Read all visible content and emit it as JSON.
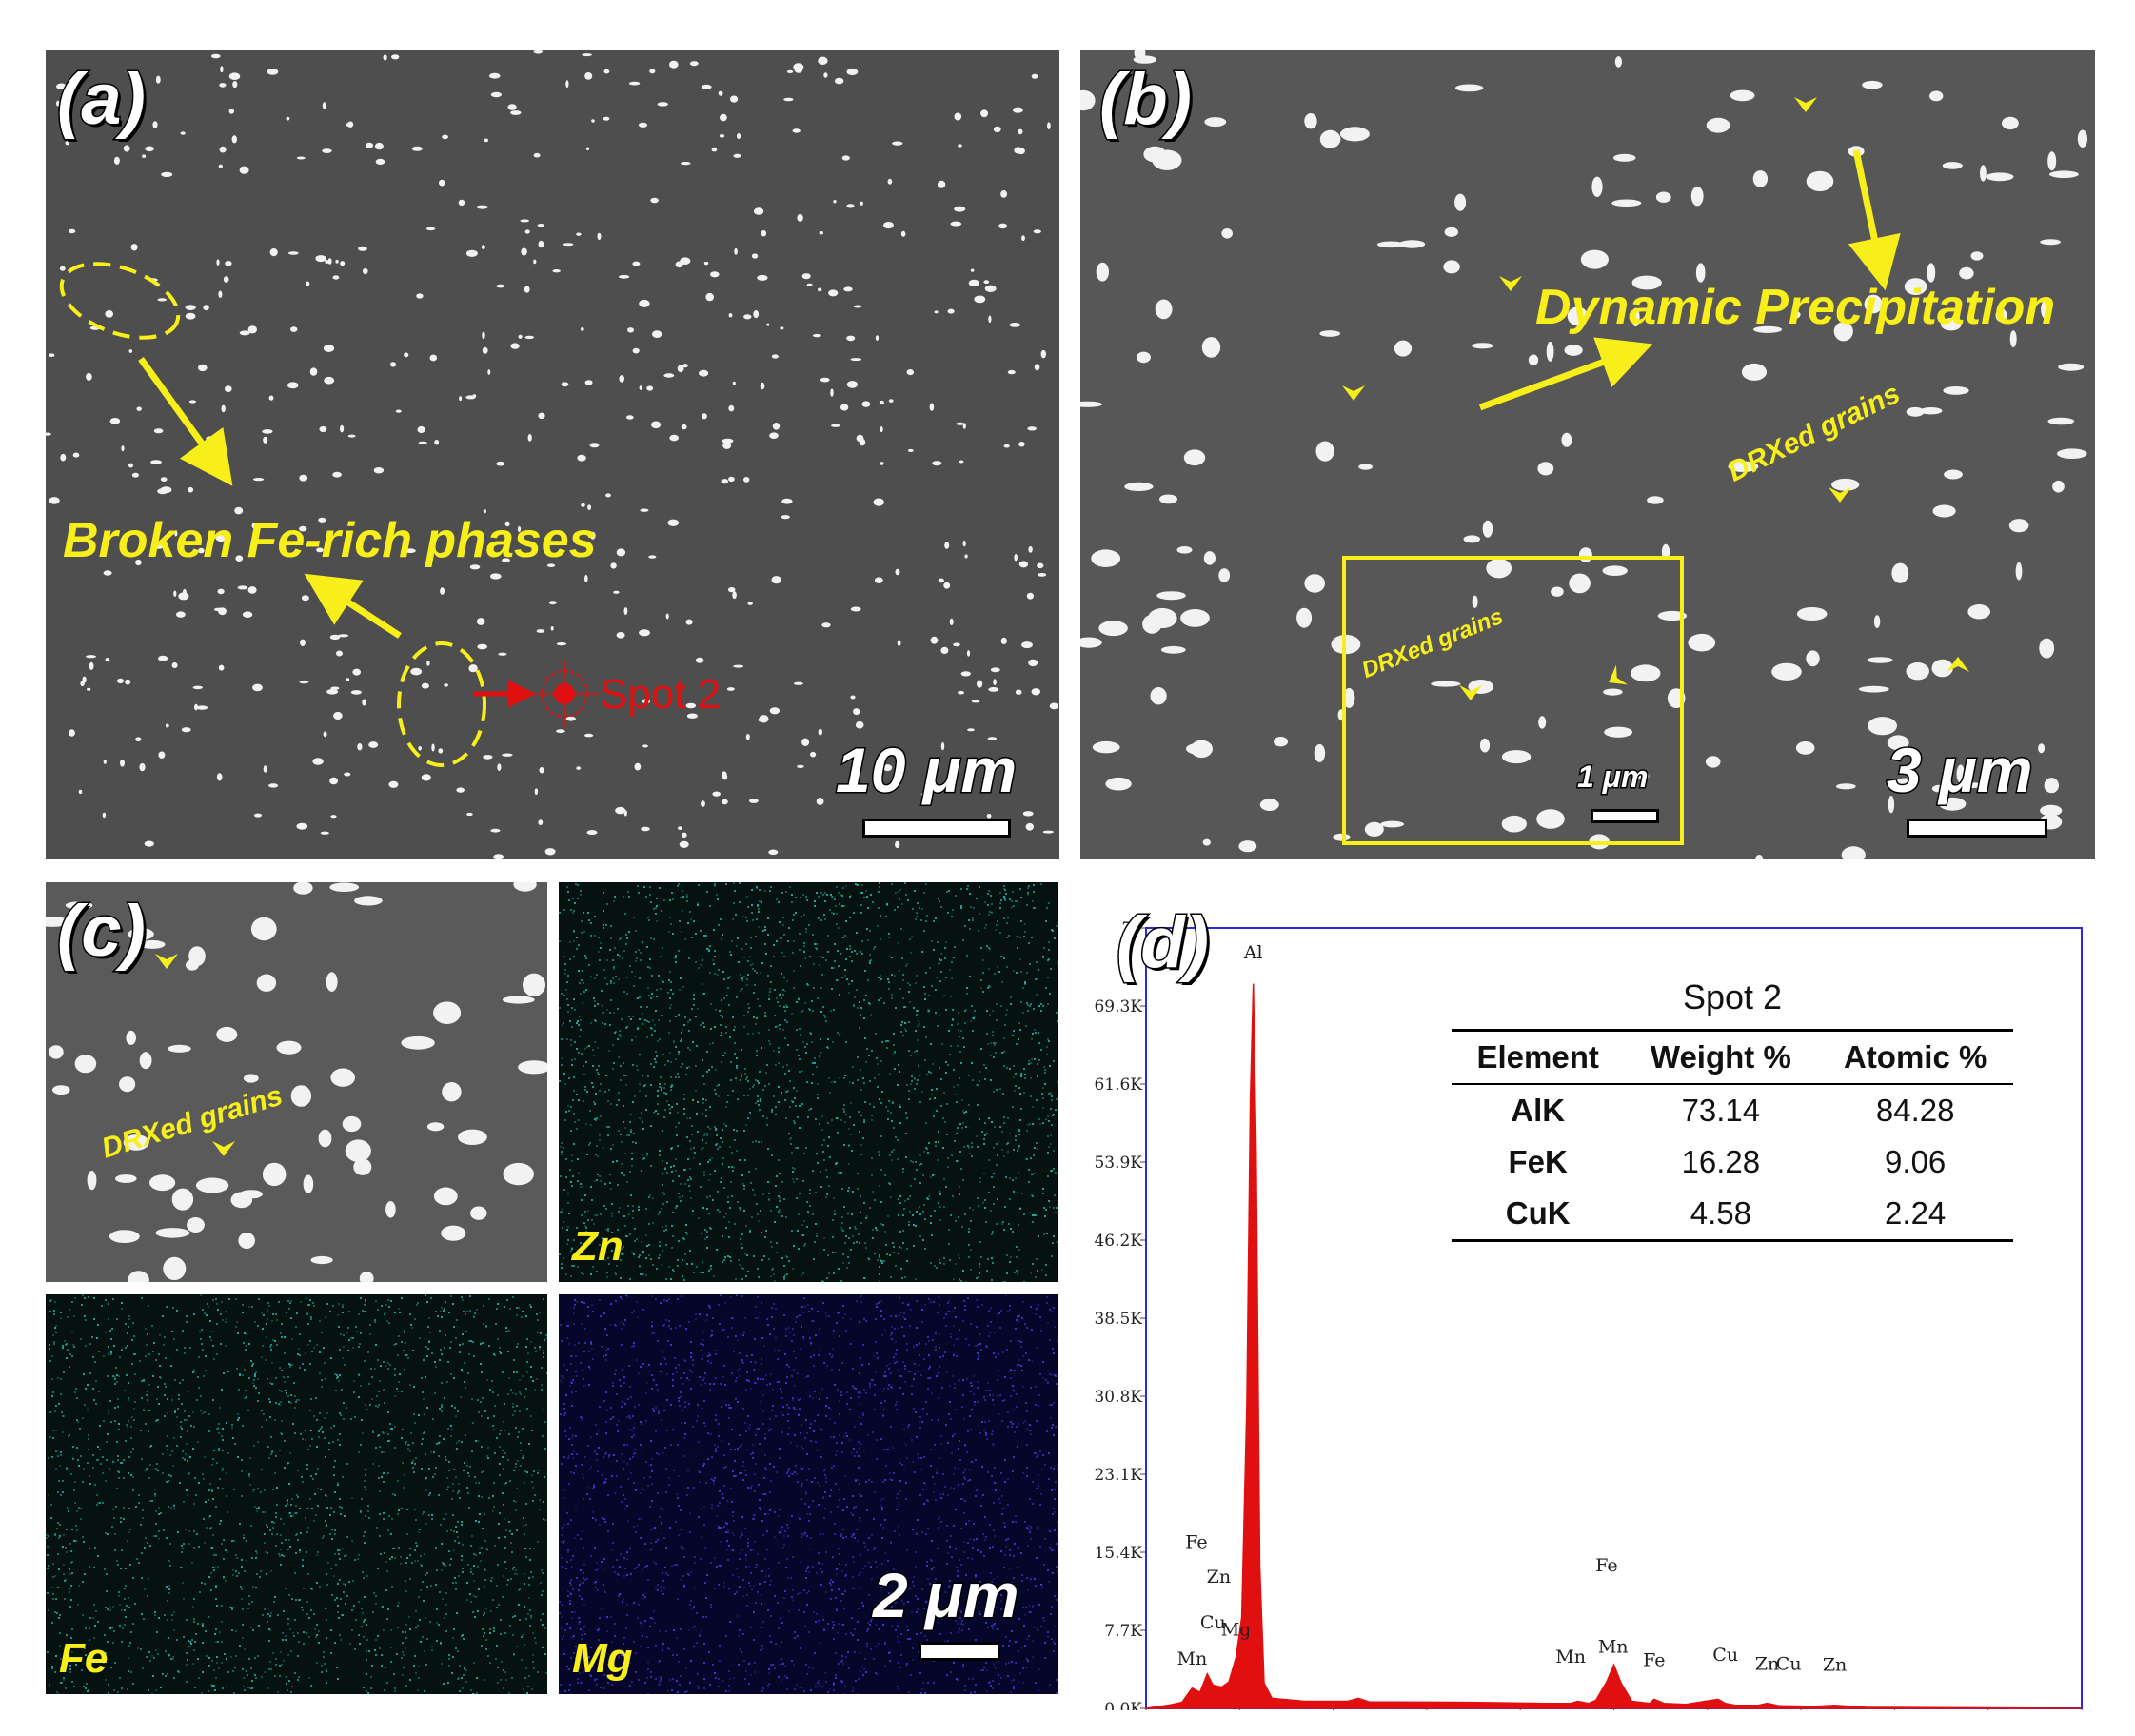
{
  "panel_a": {
    "label": "(a)",
    "annotation": "Broken Fe-rich phases",
    "spot_label": "Spot 2",
    "scale_label": "10 μm"
  },
  "panel_b": {
    "label": "(b)",
    "annotation": "Dynamic Precipitation",
    "grains_label": "DRXed grains",
    "inset_grains_label": "DRXed grains",
    "inset_scale_label": "1 μm",
    "scale_label": "3 μm"
  },
  "panel_c": {
    "label": "(c)",
    "grains_label": "DRXed grains",
    "maps": [
      "Zn",
      "Fe",
      "Mg"
    ],
    "scale_label": "2 μm"
  },
  "panel_d": {
    "label": "(d)",
    "table": {
      "title": "Spot 2",
      "headers": [
        "Element",
        "Weight %",
        "Atomic %"
      ],
      "rows": [
        [
          "AlK",
          "73.14",
          "84.28"
        ],
        [
          "FeK",
          "16.28",
          "9.06"
        ],
        [
          "CuK",
          "4.58",
          "2.24"
        ]
      ]
    }
  },
  "chart_data": {
    "type": "area",
    "title": "",
    "xlabel": "",
    "ylabel": "",
    "xlim": [
      0.0,
      13.0
    ],
    "ylim": [
      0,
      77000
    ],
    "x_ticks": [
      "0.0",
      "1.3",
      "2.6",
      "3.9",
      "5.2",
      "6.5",
      "7.8",
      "9.1",
      "10.4",
      "11.7",
      "13.0"
    ],
    "y_ticks": [
      "0.0K",
      "7.7K",
      "15.4K",
      "23.1K",
      "30.8K",
      "38.5K",
      "46.2K",
      "53.9K",
      "61.6K",
      "69.3K",
      "77"
    ],
    "series": [
      {
        "color": "#e01010",
        "x": [
          0.0,
          0.3,
          0.5,
          0.64,
          0.75,
          0.85,
          0.93,
          1.05,
          1.15,
          1.25,
          1.33,
          1.4,
          1.45,
          1.49,
          1.53,
          1.58,
          1.64,
          1.75,
          2.2,
          2.8,
          2.95,
          3.1,
          4.5,
          5.6,
          5.9,
          6.0,
          6.15,
          6.25,
          6.4,
          6.5,
          6.6,
          6.75,
          7.0,
          7.06,
          7.2,
          7.5,
          7.95,
          8.05,
          8.2,
          8.5,
          8.63,
          8.8,
          9.3,
          9.57,
          10.0,
          13.0
        ],
        "y": [
          0,
          300,
          600,
          2000,
          1600,
          3400,
          2300,
          2100,
          2600,
          5000,
          9000,
          30000,
          60000,
          71500,
          55000,
          14000,
          2500,
          1000,
          700,
          700,
          1000,
          650,
          600,
          500,
          500,
          700,
          500,
          800,
          2600,
          4300,
          2500,
          700,
          500,
          900,
          500,
          400,
          900,
          500,
          300,
          300,
          500,
          250,
          200,
          300,
          100,
          0
        ]
      }
    ],
    "peak_labels": [
      {
        "text": "Al",
        "x": 1.49,
        "y": 74000
      },
      {
        "text": "Fe",
        "x": 0.7,
        "y": 15800
      },
      {
        "text": "Zn",
        "x": 1.01,
        "y": 12400
      },
      {
        "text": "Cu",
        "x": 0.93,
        "y": 7900
      },
      {
        "text": "Mg",
        "x": 1.25,
        "y": 7200
      },
      {
        "text": "Mn",
        "x": 0.64,
        "y": 4300
      },
      {
        "text": "Fe",
        "x": 6.4,
        "y": 13500
      },
      {
        "text": "Mn",
        "x": 5.9,
        "y": 4500
      },
      {
        "text": "Mn",
        "x": 6.49,
        "y": 5500
      },
      {
        "text": "Fe",
        "x": 7.06,
        "y": 4200
      },
      {
        "text": "Cu",
        "x": 8.05,
        "y": 4700
      },
      {
        "text": "Zn",
        "x": 8.63,
        "y": 3800
      },
      {
        "text": "Cu",
        "x": 8.93,
        "y": 3800
      },
      {
        "text": "Zn",
        "x": 9.57,
        "y": 3700
      }
    ]
  }
}
